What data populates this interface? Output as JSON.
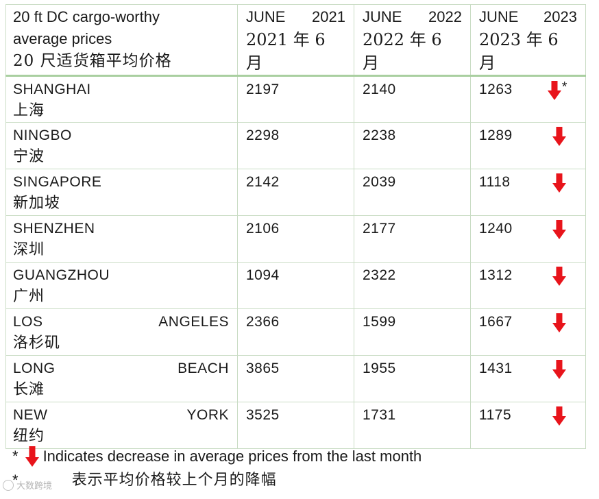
{
  "header": {
    "title_en_1": "20 ft DC cargo-worthy",
    "title_en_2": "average prices",
    "title_cn": "20 尺适货箱平均价格",
    "years": [
      {
        "month": "JUNE",
        "year": "2021",
        "cn": "2021 年 6 月"
      },
      {
        "month": "JUNE",
        "year": "2022",
        "cn": "2022 年 6 月"
      },
      {
        "month": "JUNE",
        "year": "2023",
        "cn": "2023 年 6 月"
      }
    ]
  },
  "rows": [
    {
      "en_a": "SHANGHAI",
      "en_b": "",
      "cn": "上海",
      "v2021": "2197",
      "v2022": "2140",
      "v2023": "1263",
      "starred": true
    },
    {
      "en_a": "NINGBO",
      "en_b": "",
      "cn": "宁波",
      "v2021": "2298",
      "v2022": "2238",
      "v2023": "1289",
      "starred": false
    },
    {
      "en_a": "SINGAPORE",
      "en_b": "",
      "cn": "新加坡",
      "v2021": "2142",
      "v2022": "2039",
      "v2023": "1118",
      "starred": false
    },
    {
      "en_a": "SHENZHEN",
      "en_b": "",
      "cn": "深圳",
      "v2021": "2106",
      "v2022": "2177",
      "v2023": "1240",
      "starred": false
    },
    {
      "en_a": "GUANGZHOU",
      "en_b": "",
      "cn": "广州",
      "v2021": "1094",
      "v2022": "2322",
      "v2023": "1312",
      "starred": false
    },
    {
      "en_a": "LOS",
      "en_b": "ANGELES",
      "cn": "洛杉矶",
      "v2021": "2366",
      "v2022": "1599",
      "v2023": "1667",
      "starred": false
    },
    {
      "en_a": "LONG",
      "en_b": "BEACH",
      "cn": "长滩",
      "v2021": "3865",
      "v2022": "1955",
      "v2023": "1431",
      "starred": false
    },
    {
      "en_a": "NEW",
      "en_b": "YORK",
      "cn": "纽约",
      "v2021": "3525",
      "v2022": "1731",
      "v2023": "1175",
      "starred": false
    }
  ],
  "star_symbol": "*",
  "arrow_icon": "down-arrow-icon",
  "arrow_color": "#e8141b",
  "notes": {
    "star": "*",
    "en": "Indicates decrease in average prices from the last month",
    "cn_star": "*",
    "cn": "表示平均价格较上个月的降幅"
  },
  "watermark": "大数跨境"
}
